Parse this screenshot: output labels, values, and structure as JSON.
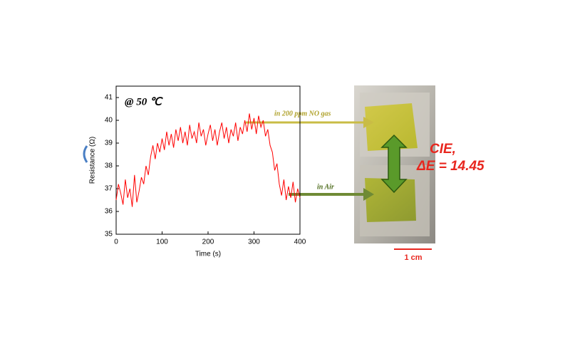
{
  "chart_data": {
    "type": "line",
    "xlabel": "Time (s)",
    "ylabel": "Resistance (Ω)",
    "x": [
      0,
      5,
      10,
      15,
      20,
      25,
      30,
      35,
      40,
      45,
      50,
      55,
      60,
      65,
      70,
      75,
      80,
      85,
      90,
      95,
      100,
      105,
      110,
      115,
      120,
      125,
      130,
      135,
      140,
      145,
      150,
      155,
      160,
      165,
      170,
      175,
      180,
      185,
      190,
      195,
      200,
      205,
      210,
      215,
      220,
      225,
      230,
      235,
      240,
      245,
      250,
      255,
      260,
      265,
      270,
      275,
      280,
      285,
      290,
      295,
      300,
      305,
      310,
      315,
      320,
      325,
      330,
      335,
      340,
      345,
      350,
      355,
      360,
      365,
      370,
      375,
      380,
      385,
      390,
      395,
      400
    ],
    "values": [
      36.5,
      37.2,
      36.8,
      36.3,
      37.4,
      36.6,
      37.0,
      36.2,
      37.6,
      36.4,
      36.9,
      37.5,
      37.2,
      38.0,
      37.6,
      38.4,
      38.9,
      38.3,
      39.0,
      38.6,
      39.2,
      38.7,
      39.5,
      38.9,
      39.4,
      38.8,
      39.6,
      39.1,
      39.7,
      39.0,
      39.5,
      38.9,
      39.8,
      39.2,
      39.5,
      39.0,
      39.9,
      39.3,
      39.6,
      38.9,
      39.4,
      39.8,
      39.1,
      39.6,
      38.9,
      39.5,
      39.9,
      39.2,
      39.7,
      39.0,
      39.6,
      39.3,
      39.9,
      39.1,
      39.7,
      39.4,
      40.0,
      39.5,
      40.3,
      39.6,
      40.1,
      39.4,
      40.2,
      39.7,
      40.0,
      39.3,
      39.6,
      38.9,
      38.6,
      37.8,
      38.1,
      37.2,
      36.7,
      37.4,
      36.5,
      37.1,
      36.6,
      37.3,
      36.4,
      37.0,
      36.6
    ],
    "color": "#ff0000",
    "xlim": [
      0,
      400
    ],
    "xticks": [
      0,
      100,
      200,
      300,
      400
    ],
    "ylim": [
      35,
      41.5
    ],
    "yticks": [
      35,
      36,
      37,
      38,
      39,
      40,
      41
    ],
    "grid": false,
    "annotations": [
      "@ 50 ℃",
      "in 200 ppm NO gas",
      "in Air",
      "CIE,",
      "ΔE =  14.45",
      "1 cm"
    ]
  }
}
